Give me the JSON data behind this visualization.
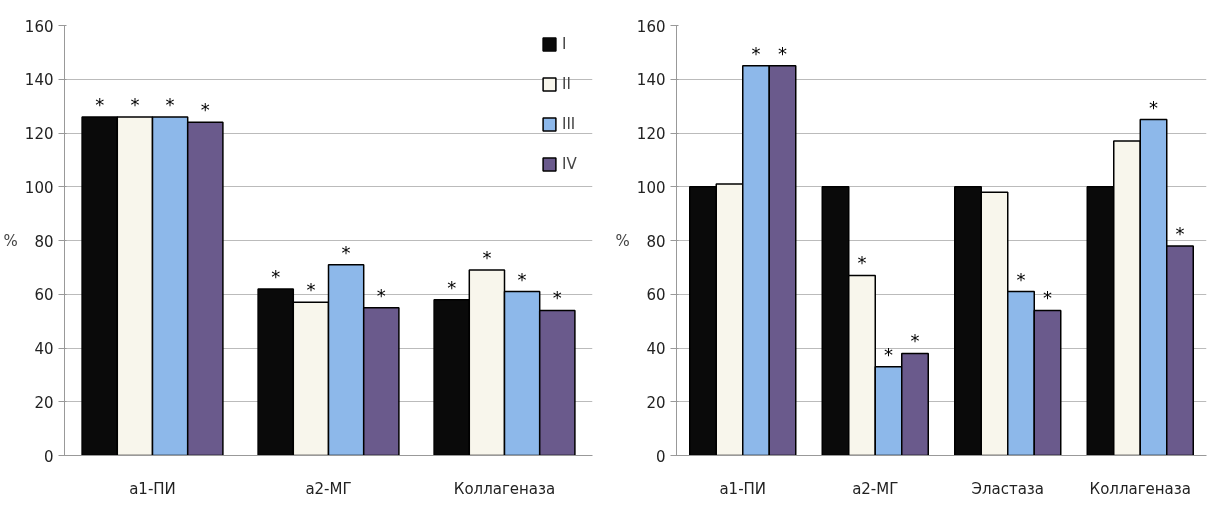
{
  "chart_data": [
    {
      "type": "bar",
      "ylabel": "%",
      "categories": [
        "а1-ПИ",
        "а2-МГ",
        "Коллагеназа"
      ],
      "ylim": [
        0,
        160
      ],
      "yticks": [
        0,
        20,
        40,
        60,
        80,
        100,
        120,
        140,
        160
      ],
      "grid": "y",
      "legend": "top right",
      "series": [
        {
          "name": "I",
          "color": "#0a0a0a",
          "values": [
            126,
            62,
            58
          ],
          "value_labels": [
            "*",
            "*",
            "*"
          ]
        },
        {
          "name": "II",
          "color": "#f8f6ec",
          "values": [
            126,
            57,
            69
          ],
          "value_labels": [
            "*",
            "*",
            "*"
          ]
        },
        {
          "name": "III",
          "color": "#8db8ea",
          "values": [
            126,
            71,
            61
          ],
          "value_labels": [
            "*",
            "*",
            "*"
          ]
        },
        {
          "name": "IV",
          "color": "#6a5a8c",
          "values": [
            124,
            55,
            54
          ],
          "value_labels": [
            "*",
            "*",
            "*"
          ]
        }
      ]
    },
    {
      "type": "bar",
      "ylabel": "%",
      "categories": [
        "а1-ПИ",
        "а2-МГ",
        "Эластаза",
        "Коллагеназа"
      ],
      "ylim": [
        0,
        160
      ],
      "yticks": [
        0,
        20,
        40,
        60,
        80,
        100,
        120,
        140,
        160
      ],
      "grid": "y",
      "series": [
        {
          "color": "#0a0a0a",
          "values": [
            100,
            100,
            100,
            100
          ]
        },
        {
          "color": "#f8f6ec",
          "values": [
            101,
            67,
            98,
            117
          ],
          "value_labels": [
            null,
            "*",
            null,
            null
          ]
        },
        {
          "color": "#8db8ea",
          "values": [
            145,
            33,
            61,
            125
          ],
          "value_labels": [
            "*",
            "*",
            "*",
            "*"
          ]
        },
        {
          "color": "#6a5a8c",
          "values": [
            145,
            38,
            54,
            78
          ],
          "value_labels": [
            "*",
            "*",
            "*",
            "*"
          ]
        }
      ]
    }
  ]
}
